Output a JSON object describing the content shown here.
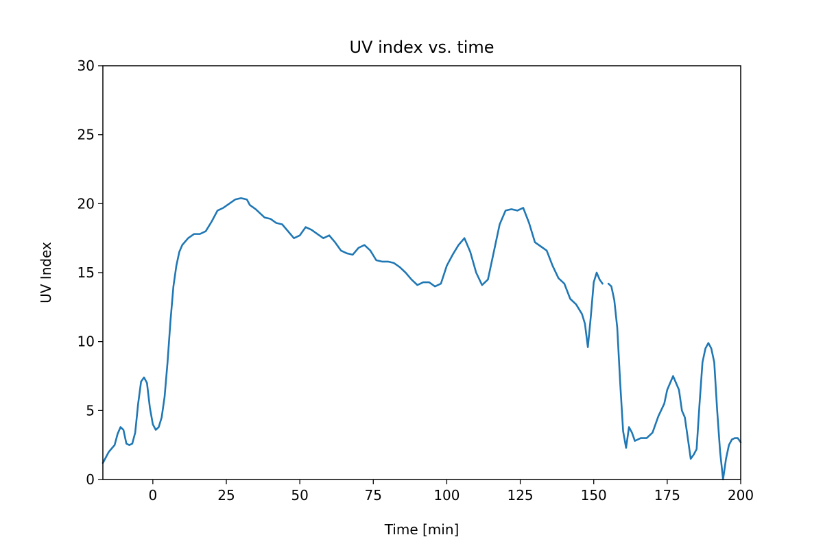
{
  "chart_data": {
    "type": "line",
    "title": "UV index vs. time",
    "xlabel": "Time [min]",
    "ylabel": "UV Index",
    "xlim": [
      -17,
      200
    ],
    "ylim": [
      0,
      30
    ],
    "xticks": [
      0,
      25,
      50,
      75,
      100,
      125,
      150,
      175,
      200
    ],
    "yticks": [
      0,
      5,
      10,
      15,
      20,
      25,
      30
    ],
    "grid": false,
    "colors": {
      "line": "#1f77b4",
      "axes": "#000000",
      "background": "#ffffff"
    },
    "series": [
      {
        "segments": [
          [
            [
              -17,
              1.2
            ],
            [
              -15,
              2.0
            ],
            [
              -13,
              2.5
            ],
            [
              -12,
              3.3
            ],
            [
              -11,
              3.8
            ],
            [
              -10,
              3.6
            ],
            [
              -9,
              2.6
            ],
            [
              -8,
              2.5
            ],
            [
              -7,
              2.6
            ],
            [
              -6,
              3.4
            ],
            [
              -5,
              5.5
            ],
            [
              -4,
              7.1
            ],
            [
              -3,
              7.4
            ],
            [
              -2,
              7.0
            ],
            [
              -1,
              5.2
            ],
            [
              0,
              4.0
            ],
            [
              1,
              3.6
            ],
            [
              2,
              3.8
            ],
            [
              3,
              4.5
            ],
            [
              4,
              6.0
            ],
            [
              5,
              8.5
            ],
            [
              6,
              11.5
            ],
            [
              7,
              14.0
            ],
            [
              8,
              15.5
            ],
            [
              9,
              16.5
            ],
            [
              10,
              17.0
            ],
            [
              12,
              17.5
            ],
            [
              14,
              17.8
            ],
            [
              16,
              17.8
            ],
            [
              18,
              18.0
            ],
            [
              20,
              18.7
            ],
            [
              22,
              19.5
            ],
            [
              24,
              19.7
            ],
            [
              26,
              20.0
            ],
            [
              28,
              20.3
            ],
            [
              30,
              20.4
            ],
            [
              32,
              20.3
            ],
            [
              33,
              19.9
            ],
            [
              35,
              19.6
            ],
            [
              38,
              19.0
            ],
            [
              40,
              18.9
            ],
            [
              42,
              18.6
            ],
            [
              44,
              18.5
            ],
            [
              46,
              18.0
            ],
            [
              48,
              17.5
            ],
            [
              50,
              17.7
            ],
            [
              52,
              18.3
            ],
            [
              54,
              18.1
            ],
            [
              56,
              17.8
            ],
            [
              58,
              17.5
            ],
            [
              60,
              17.7
            ],
            [
              62,
              17.2
            ],
            [
              64,
              16.6
            ],
            [
              66,
              16.4
            ],
            [
              68,
              16.3
            ],
            [
              70,
              16.8
            ],
            [
              72,
              17.0
            ],
            [
              74,
              16.6
            ],
            [
              76,
              15.9
            ],
            [
              78,
              15.8
            ],
            [
              80,
              15.8
            ],
            [
              82,
              15.7
            ],
            [
              84,
              15.4
            ],
            [
              86,
              15.0
            ],
            [
              88,
              14.5
            ],
            [
              90,
              14.1
            ],
            [
              92,
              14.3
            ],
            [
              94,
              14.3
            ],
            [
              96,
              14.0
            ],
            [
              98,
              14.2
            ],
            [
              100,
              15.5
            ],
            [
              102,
              16.3
            ],
            [
              104,
              17.0
            ],
            [
              106,
              17.5
            ],
            [
              108,
              16.5
            ],
            [
              110,
              15.0
            ],
            [
              112,
              14.1
            ],
            [
              114,
              14.5
            ],
            [
              116,
              16.5
            ],
            [
              118,
              18.5
            ],
            [
              120,
              19.5
            ],
            [
              122,
              19.6
            ],
            [
              124,
              19.5
            ],
            [
              126,
              19.7
            ],
            [
              128,
              18.6
            ],
            [
              130,
              17.2
            ],
            [
              132,
              16.9
            ],
            [
              134,
              16.6
            ],
            [
              136,
              15.5
            ],
            [
              138,
              14.6
            ],
            [
              140,
              14.2
            ],
            [
              142,
              13.1
            ],
            [
              144,
              12.7
            ],
            [
              146,
              12.0
            ],
            [
              147,
              11.3
            ],
            [
              148,
              9.6
            ],
            [
              149,
              11.8
            ],
            [
              150,
              14.3
            ],
            [
              151,
              15.0
            ],
            [
              152,
              14.5
            ],
            [
              153,
              14.2
            ]
          ],
          [
            [
              155,
              14.2
            ],
            [
              156,
              14.0
            ],
            [
              157,
              13.0
            ],
            [
              158,
              11.0
            ],
            [
              159,
              7.0
            ],
            [
              160,
              3.5
            ],
            [
              161,
              2.3
            ],
            [
              162,
              3.8
            ],
            [
              163,
              3.4
            ],
            [
              164,
              2.8
            ],
            [
              166,
              3.0
            ],
            [
              168,
              3.0
            ],
            [
              170,
              3.4
            ],
            [
              172,
              4.6
            ],
            [
              174,
              5.5
            ],
            [
              175,
              6.5
            ],
            [
              176,
              7.0
            ],
            [
              177,
              7.5
            ],
            [
              178,
              7.0
            ],
            [
              179,
              6.5
            ],
            [
              180,
              5.0
            ],
            [
              181,
              4.5
            ],
            [
              182,
              3.0
            ],
            [
              183,
              1.5
            ],
            [
              184,
              1.8
            ],
            [
              185,
              2.2
            ],
            [
              186,
              5.5
            ],
            [
              187,
              8.5
            ],
            [
              188,
              9.5
            ],
            [
              189,
              9.9
            ],
            [
              190,
              9.5
            ],
            [
              191,
              8.5
            ],
            [
              192,
              5.0
            ],
            [
              193,
              2.0
            ],
            [
              194,
              0.0
            ],
            [
              195,
              1.5
            ],
            [
              196,
              2.5
            ],
            [
              197,
              2.9
            ],
            [
              198,
              3.0
            ],
            [
              199,
              3.0
            ],
            [
              200,
              2.7
            ]
          ]
        ]
      }
    ]
  }
}
